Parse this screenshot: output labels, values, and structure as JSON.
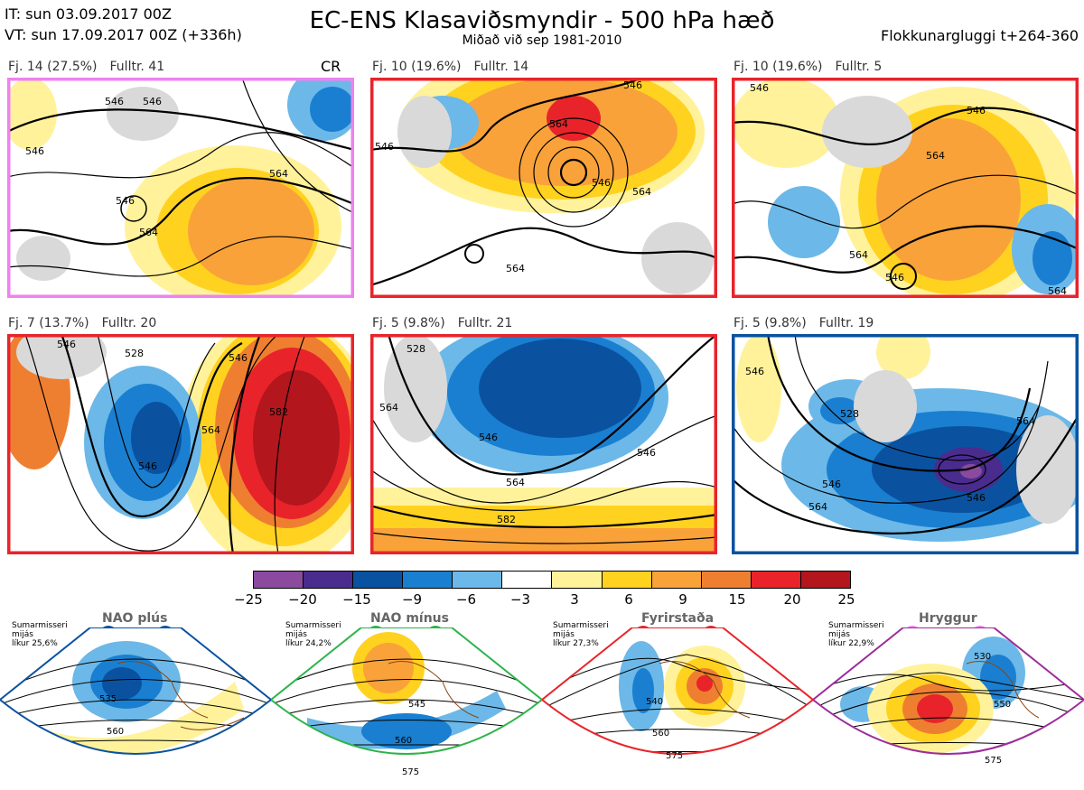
{
  "header": {
    "it": "IT: sun 03.09.2017 00Z",
    "vt": "VT: sun 17.09.2017 00Z  (+336h)",
    "title": "EC-ENS Klasaviðsmyndir - 500 hPa hæð",
    "subtitle": "Miðað við sep 1981-2010",
    "window": "Flokkunargluggi t+264-360"
  },
  "panels": [
    {
      "label": "Fj. 14 (27.5%)",
      "members": "Fulltr. 41",
      "tag": "CR",
      "frame": "#ee82ee",
      "contours": [
        "546",
        "546",
        "546",
        "564",
        "564",
        "546"
      ]
    },
    {
      "label": "Fj. 10 (19.6%)",
      "members": "Fulltr. 14",
      "tag": "",
      "frame": "#e8242a",
      "contours": [
        "564",
        "546",
        "564",
        "546",
        "564",
        "546"
      ]
    },
    {
      "label": "Fj. 10 (19.6%)",
      "members": "Fulltr. 5",
      "tag": "",
      "frame": "#e8242a",
      "contours": [
        "546",
        "564",
        "546",
        "564",
        "546",
        "564"
      ]
    },
    {
      "label": "Fj. 7 (13.7%)",
      "members": "Fulltr. 20",
      "tag": "",
      "frame": "#e8242a",
      "contours": [
        "546",
        "528",
        "546",
        "564",
        "582",
        "546"
      ]
    },
    {
      "label": "Fj. 5 (9.8%)",
      "members": "Fulltr. 21",
      "tag": "",
      "frame": "#e8242a",
      "contours": [
        "528",
        "546",
        "564",
        "546",
        "564",
        "582"
      ]
    },
    {
      "label": "Fj. 5 (9.8%)",
      "members": "Fulltr. 19",
      "tag": "",
      "frame": "#0a52a0",
      "contours": [
        "546",
        "528",
        "546",
        "564",
        "546",
        "564"
      ]
    }
  ],
  "colorbar": {
    "colors": [
      "#8b4a9e",
      "#4a2c8f",
      "#0a52a0",
      "#1a7fd0",
      "#6cb8e8",
      "#ffffff",
      "#fff29a",
      "#ffd21f",
      "#f9a23a",
      "#ef7f30",
      "#e8242a",
      "#b3161d"
    ],
    "ticks": [
      "−25",
      "−20",
      "−15",
      "−9",
      "−6",
      "−3",
      "3",
      "6",
      "9",
      "15",
      "20",
      "25"
    ]
  },
  "regimes": [
    {
      "title": "NAO plús",
      "note": "Sumarmisseri\nmijás\nlíkur 25,6%",
      "color": "#0a52a0",
      "labels": [
        "535",
        "560"
      ]
    },
    {
      "title": "NAO mínus",
      "note": "Sumarmisseri\nmijás\nlíkur 24,2%",
      "color": "#2db34a",
      "labels": [
        "545",
        "560",
        "575"
      ]
    },
    {
      "title": "Fyrirstaða",
      "note": "Sumarmisseri\nmijás\nlíkur 27,3%",
      "color": "#e8242a",
      "labels": [
        "540",
        "560",
        "575"
      ]
    },
    {
      "title": "Hryggur",
      "note": "Sumarmisseri\nmijás\nlíkur 22,9%",
      "color": "#9b2d9b",
      "labels": [
        "530",
        "550",
        "575"
      ]
    }
  ],
  "regime_dot_colors": [
    "#0a52a0",
    "#2db34a",
    "#e8242a",
    "#ee82ee"
  ]
}
